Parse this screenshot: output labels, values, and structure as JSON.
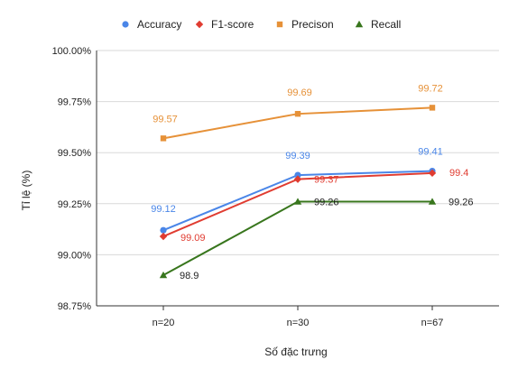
{
  "chart_data": {
    "type": "line",
    "title": "",
    "xlabel": "Số đặc trưng",
    "ylabel": "Tỉ lệ (%)",
    "categories": [
      "n=20",
      "n=30",
      "n=67"
    ],
    "ylim": [
      98.75,
      100.0
    ],
    "yticks": [
      98.75,
      99.0,
      99.25,
      99.5,
      99.75,
      100.0
    ],
    "ytick_labels": [
      "98.75%",
      "99.00%",
      "99.25%",
      "99.50%",
      "99.75%",
      "100.00%"
    ],
    "grid": true,
    "legend_position": "top",
    "series": [
      {
        "name": "Accuracy",
        "values": [
          99.12,
          99.39,
          99.41
        ],
        "labels": [
          "99.12",
          "99.39",
          "99.41"
        ],
        "color": "#4a86e8",
        "marker": "circle"
      },
      {
        "name": "F1-score",
        "values": [
          99.09,
          99.37,
          99.4
        ],
        "labels": [
          "99.09",
          "99.37",
          "99.4"
        ],
        "color": "#e03c31",
        "marker": "diamond"
      },
      {
        "name": "Precison",
        "values": [
          99.57,
          99.69,
          99.72
        ],
        "labels": [
          "99.57",
          "99.69",
          "99.72"
        ],
        "color": "#e69138",
        "marker": "square"
      },
      {
        "name": "Recall",
        "values": [
          98.9,
          99.26,
          99.26
        ],
        "labels": [
          "98.9",
          "99.26",
          "99.26"
        ],
        "color": "#38761d",
        "label_color": "#222222",
        "marker": "triangle"
      }
    ]
  }
}
